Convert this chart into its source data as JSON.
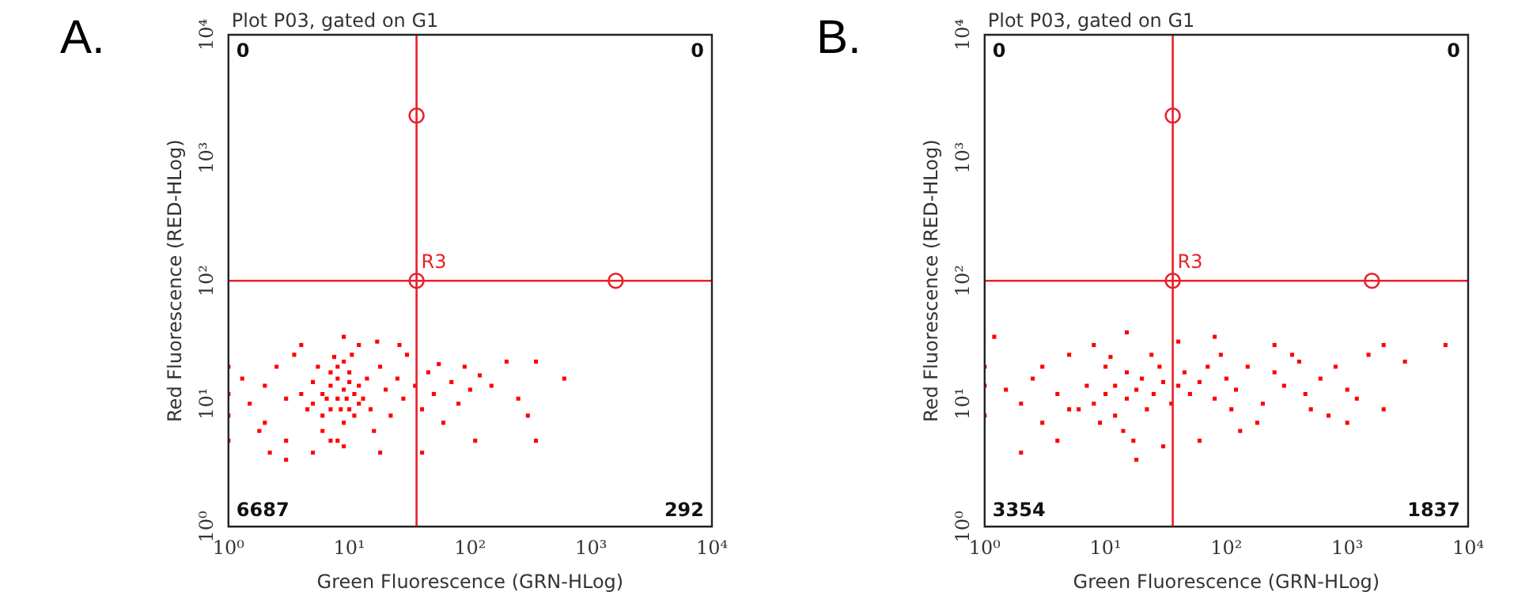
{
  "chart_data": [
    {
      "type": "scatter",
      "title": "Plot P03, gated on G1",
      "xlabel": "Green Fluorescence (GRN-HLog)",
      "ylabel": "Red Fluorescence (RED-HLog)",
      "log": "xy",
      "grid": false,
      "legend": false,
      "xlim": [
        1,
        10000
      ],
      "ylim": [
        1,
        10000
      ],
      "xticks": [
        {
          "value": 1,
          "label": "10⁰"
        },
        {
          "value": 10,
          "label": "10¹"
        },
        {
          "value": 100,
          "label": "10²"
        },
        {
          "value": 1000,
          "label": "10³"
        },
        {
          "value": 10000,
          "label": "10⁴"
        }
      ],
      "yticks": [
        {
          "value": 1,
          "label": "10⁰"
        },
        {
          "value": 10,
          "label": "10¹"
        },
        {
          "value": 100,
          "label": "10²"
        },
        {
          "value": 1000,
          "label": "10³"
        },
        {
          "value": 10000,
          "label": "10⁴"
        }
      ],
      "ref_lines": [
        {
          "axis": "x",
          "value": 36,
          "color": "#e8202a"
        },
        {
          "axis": "y",
          "value": 100,
          "color": "#e8202a"
        }
      ],
      "annotations": [
        "A.",
        "0",
        "0",
        "6687",
        "292",
        {
          "text": "R3",
          "x": 36,
          "y": 100
        }
      ],
      "series": [
        {
          "color": "#ff0000",
          "marker": "square",
          "x": [
            5,
            6,
            7,
            8,
            9,
            10,
            6,
            7,
            8,
            9,
            10,
            11,
            12,
            5,
            6,
            7,
            8,
            9,
            10,
            11,
            12,
            13,
            8,
            9,
            4,
            4.5,
            5.5,
            7.5,
            10.5,
            14,
            15,
            6.5,
            8.5,
            9.5,
            7,
            1,
            1,
            1,
            1,
            1.5,
            2,
            2,
            2.5,
            3,
            3,
            2.2,
            3.5,
            1.3,
            1.8,
            4,
            3,
            5,
            16,
            18,
            20,
            22,
            25,
            28,
            30,
            35,
            40,
            45,
            50,
            55,
            60,
            70,
            80,
            90,
            100,
            120,
            150,
            200,
            250,
            350,
            600,
            350,
            300,
            110,
            17,
            12,
            9,
            26,
            40,
            18
          ],
          "values": [
            10,
            12,
            14,
            11,
            13,
            9,
            8,
            18,
            20,
            7,
            15,
            12,
            10,
            15,
            6,
            5,
            16,
            22,
            18,
            8,
            14,
            11,
            5,
            4.5,
            12,
            9,
            20,
            24,
            25,
            16,
            9,
            11,
            9,
            11,
            9,
            5,
            12,
            20,
            8,
            10,
            14,
            7,
            20,
            5,
            11,
            4,
            25,
            16,
            6,
            30,
            3.5,
            4,
            6,
            20,
            13,
            8,
            16,
            11,
            25,
            14,
            9,
            18,
            12,
            21,
            7,
            15,
            10,
            20,
            13,
            17,
            14,
            22,
            11,
            22,
            16,
            5,
            8,
            5,
            32,
            30,
            35,
            30,
            4,
            4
          ]
        },
        {
          "color": "#e8202a",
          "marker": "circle",
          "x": [
            36,
            36,
            1600
          ],
          "values": [
            2200,
            100,
            100
          ]
        }
      ]
    },
    {
      "type": "scatter",
      "title": "Plot P03, gated on G1",
      "xlabel": "Green Fluorescence (GRN-HLog)",
      "ylabel": "Red Fluorescence (RED-HLog)",
      "log": "xy",
      "grid": false,
      "legend": false,
      "xlim": [
        1,
        10000
      ],
      "ylim": [
        1,
        10000
      ],
      "xticks": [
        {
          "value": 1,
          "label": "10⁰"
        },
        {
          "value": 10,
          "label": "10¹"
        },
        {
          "value": 100,
          "label": "10²"
        },
        {
          "value": 1000,
          "label": "10³"
        },
        {
          "value": 10000,
          "label": "10⁴"
        }
      ],
      "yticks": [
        {
          "value": 1,
          "label": "10⁰"
        },
        {
          "value": 10,
          "label": "10¹"
        },
        {
          "value": 100,
          "label": "10²"
        },
        {
          "value": 1000,
          "label": "10³"
        },
        {
          "value": 10000,
          "label": "10⁴"
        }
      ],
      "ref_lines": [
        {
          "axis": "x",
          "value": 36,
          "color": "#e8202a"
        },
        {
          "axis": "y",
          "value": 100,
          "color": "#e8202a"
        }
      ],
      "annotations": [
        "B.",
        "0",
        "0",
        "3354",
        "1837",
        {
          "text": "R3",
          "x": 36,
          "y": 100
        }
      ],
      "series": [
        {
          "color": "#ff0000",
          "marker": "square",
          "x": [
            8,
            10,
            12,
            15,
            18,
            20,
            25,
            30,
            35,
            40,
            12,
            15,
            10,
            9,
            14,
            22,
            28,
            45,
            50,
            60,
            70,
            80,
            100,
            120,
            150,
            7,
            6,
            11,
            17,
            24,
            1,
            1,
            1,
            1.5,
            2,
            2.5,
            3,
            3,
            4,
            4,
            5,
            5,
            2,
            200,
            250,
            300,
            400,
            500,
            600,
            800,
            1000,
            1200,
            1500,
            2000,
            3000,
            6500,
            2000,
            250,
            80,
            40,
            15,
            8,
            60,
            30,
            130,
            180,
            700,
            1000,
            1.2,
            18,
            90,
            350,
            450,
            110
          ],
          "values": [
            10,
            12,
            14,
            11,
            13,
            16,
            12,
            15,
            10,
            14,
            8,
            18,
            20,
            7,
            6,
            9,
            20,
            18,
            12,
            15,
            20,
            11,
            16,
            13,
            20,
            14,
            9,
            24,
            5,
            25,
            8,
            14,
            20,
            13,
            10,
            16,
            7,
            20,
            12,
            5,
            25,
            9,
            4,
            10,
            18,
            14,
            22,
            9,
            16,
            20,
            13,
            11,
            25,
            9,
            22,
            30,
            30,
            30,
            35,
            32,
            38,
            30,
            5,
            4.5,
            6,
            7,
            8,
            7,
            35,
            3.5,
            25,
            25,
            12,
            9
          ]
        },
        {
          "color": "#e8202a",
          "marker": "circle",
          "x": [
            36,
            36,
            1600
          ],
          "values": [
            2200,
            100,
            100
          ]
        }
      ]
    }
  ]
}
